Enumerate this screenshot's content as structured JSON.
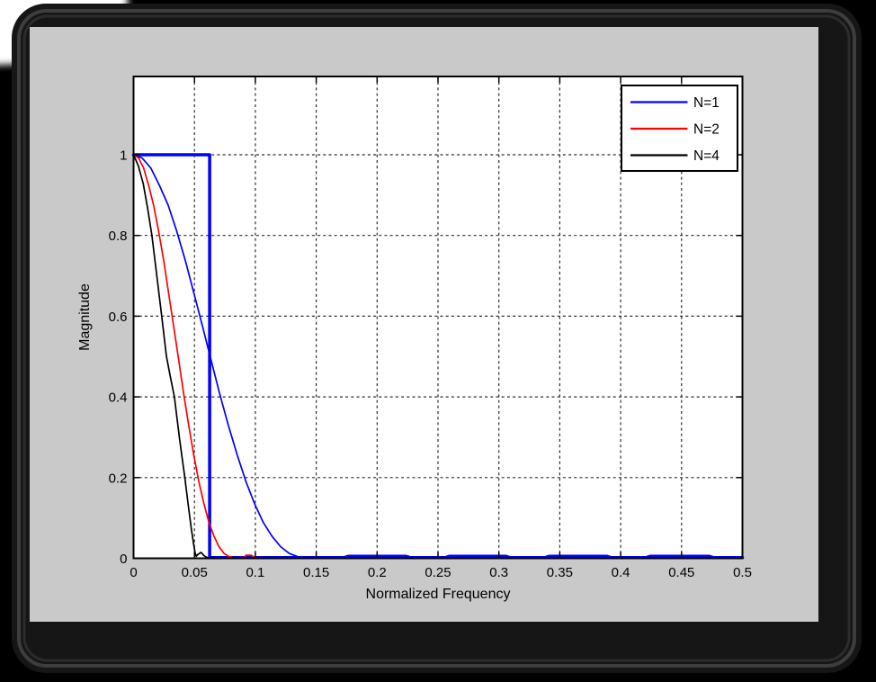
{
  "figure": {
    "page_background": "#000000",
    "corner_light": "#ffffff",
    "frame_color": "#161616",
    "bevel_color_outer": "#3d3d3d",
    "bevel_color_inner": "#2c2c2c",
    "panel_color": "#c9c9c9",
    "plot_background": "#ffffff",
    "grid_color": "#2b2b2b",
    "axis_color": "#000000"
  },
  "chart_data": {
    "type": "line",
    "title": "",
    "xlabel": "Normalized Frequency",
    "ylabel": "Magnitude",
    "xlim": [
      0,
      0.5
    ],
    "ylim": [
      0,
      1.194
    ],
    "grid": true,
    "x_ticks": [
      0,
      0.05,
      0.1,
      0.15,
      0.2,
      0.25,
      0.3,
      0.35,
      0.4,
      0.45,
      0.5
    ],
    "x_tick_labels": [
      "0",
      "0.05",
      "0.1",
      "0.15",
      "0.2",
      "0.25",
      "0.3",
      "0.35",
      "0.4",
      "0.45",
      "0.5"
    ],
    "y_ticks": [
      0,
      0.2,
      0.4,
      0.6,
      0.8,
      1
    ],
    "y_tick_labels": [
      "0",
      "0.2",
      "0.4",
      "0.6",
      "0.8",
      "1"
    ],
    "legend": {
      "position": "top-right",
      "items": [
        {
          "label": "N=1",
          "color": "#0000ff"
        },
        {
          "label": "N=2",
          "color": "#ff0000"
        },
        {
          "label": "N=4",
          "color": "#000000"
        }
      ]
    },
    "series": [
      {
        "name": "ideal-lowpass-cutoff-0.0625",
        "color": "#0000ff",
        "width": 3.5,
        "in_legend": false,
        "points": [
          [
            0,
            1
          ],
          [
            0.0625,
            1
          ],
          [
            0.0625,
            0.0015
          ],
          [
            0.5,
            0.0015
          ]
        ]
      },
      {
        "name": "N=1",
        "color": "#0000ff",
        "width": 1.7,
        "in_legend": true,
        "points": [
          [
            0,
            1
          ],
          [
            0.007,
            0.992
          ],
          [
            0.0142,
            0.967
          ],
          [
            0.0213,
            0.924
          ],
          [
            0.0284,
            0.875
          ],
          [
            0.0355,
            0.81
          ],
          [
            0.0426,
            0.737
          ],
          [
            0.0497,
            0.655
          ],
          [
            0.0568,
            0.573
          ],
          [
            0.0625,
            0.505
          ],
          [
            0.071,
            0.405
          ],
          [
            0.0781,
            0.327
          ],
          [
            0.0852,
            0.255
          ],
          [
            0.0923,
            0.19
          ],
          [
            0.0994,
            0.135
          ],
          [
            0.1065,
            0.089
          ],
          [
            0.1136,
            0.055
          ],
          [
            0.1207,
            0.029
          ],
          [
            0.1278,
            0.012
          ],
          [
            0.1349,
            0.004
          ],
          [
            0.142,
            0.0015
          ],
          [
            0.15,
            0.0015
          ],
          [
            0.171,
            0.002
          ],
          [
            0.176,
            0.007
          ],
          [
            0.224,
            0.007
          ],
          [
            0.229,
            0.002
          ],
          [
            0.254,
            0.002
          ],
          [
            0.259,
            0.007
          ],
          [
            0.306,
            0.007
          ],
          [
            0.311,
            0.002
          ],
          [
            0.336,
            0.002
          ],
          [
            0.341,
            0.007
          ],
          [
            0.389,
            0.007
          ],
          [
            0.394,
            0.002
          ],
          [
            0.419,
            0.002
          ],
          [
            0.424,
            0.007
          ],
          [
            0.473,
            0.007
          ],
          [
            0.478,
            0.002
          ],
          [
            0.5,
            0.0015
          ]
        ]
      },
      {
        "name": "N=2",
        "color": "#ff0000",
        "width": 1.7,
        "in_legend": true,
        "points": [
          [
            0,
            1
          ],
          [
            0.0041,
            0.992
          ],
          [
            0.0083,
            0.967
          ],
          [
            0.0124,
            0.924
          ],
          [
            0.0165,
            0.875
          ],
          [
            0.0206,
            0.81
          ],
          [
            0.0248,
            0.737
          ],
          [
            0.0289,
            0.655
          ],
          [
            0.033,
            0.573
          ],
          [
            0.0364,
            0.505
          ],
          [
            0.0413,
            0.405
          ],
          [
            0.0454,
            0.327
          ],
          [
            0.0495,
            0.255
          ],
          [
            0.0536,
            0.19
          ],
          [
            0.0578,
            0.135
          ],
          [
            0.0619,
            0.089
          ],
          [
            0.066,
            0.055
          ],
          [
            0.0701,
            0.029
          ],
          [
            0.0743,
            0.012
          ],
          [
            0.0784,
            0.004
          ],
          [
            0.0825,
            0.0015
          ],
          [
            0.086,
            0.0015
          ],
          [
            0.0905,
            0.002
          ],
          [
            0.0925,
            0.0075
          ],
          [
            0.0965,
            0.0075
          ],
          [
            0.0996,
            0.002
          ],
          [
            0.105,
            0.0015
          ],
          [
            0.5,
            0.0015
          ]
        ]
      },
      {
        "name": "N=4",
        "color": "#000000",
        "width": 1.7,
        "in_legend": true,
        "points": [
          [
            0,
            1
          ],
          [
            0.004,
            0.972
          ],
          [
            0.008,
            0.928
          ],
          [
            0.0115,
            0.868
          ],
          [
            0.0151,
            0.8
          ],
          [
            0.019,
            0.703
          ],
          [
            0.0231,
            0.6
          ],
          [
            0.027,
            0.5
          ],
          [
            0.0302,
            0.45
          ],
          [
            0.0335,
            0.4
          ],
          [
            0.0378,
            0.295
          ],
          [
            0.0421,
            0.2
          ],
          [
            0.045,
            0.13
          ],
          [
            0.0475,
            0.072
          ],
          [
            0.0495,
            0.032
          ],
          [
            0.0505,
            0.014
          ],
          [
            0.0515,
            0.005
          ],
          [
            0.053,
            0.01
          ],
          [
            0.0555,
            0.0145
          ],
          [
            0.058,
            0.006
          ],
          [
            0.0605,
            0.002
          ],
          [
            0.065,
            0.0015
          ],
          [
            0.5,
            0.0015
          ]
        ]
      }
    ]
  }
}
